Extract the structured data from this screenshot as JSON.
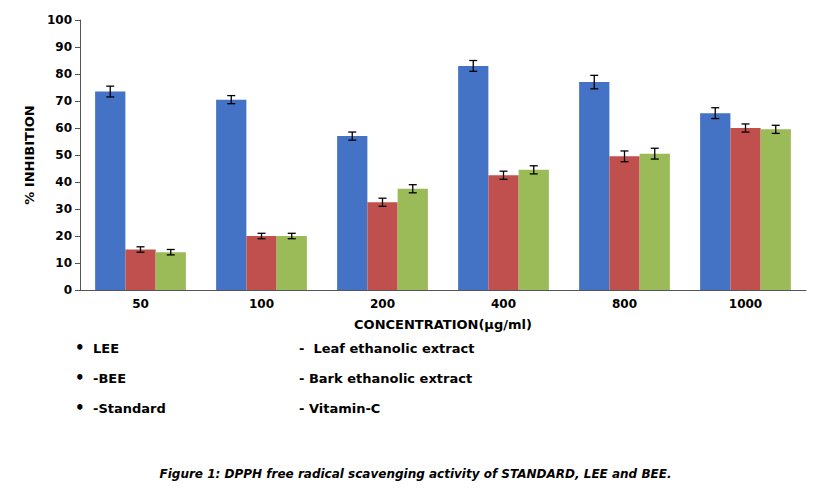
{
  "chart_data": {
    "type": "bar",
    "xlabel": "CONCENTRATION(μg/ml)",
    "ylabel": "% INHIBITION",
    "categories": [
      "50",
      "100",
      "200",
      "400",
      "800",
      "1000"
    ],
    "series": [
      {
        "color": "#4472C4",
        "values": [
          73.5,
          70.5,
          57.0,
          83.0,
          77.0,
          65.5
        ],
        "errors": [
          2.0,
          1.5,
          1.5,
          2.0,
          2.5,
          2.0
        ]
      },
      {
        "color": "#C0504D",
        "values": [
          15.0,
          20.0,
          32.5,
          42.5,
          49.5,
          60.0
        ],
        "errors": [
          1.0,
          1.0,
          1.5,
          1.5,
          2.0,
          1.5
        ]
      },
      {
        "color": "#9BBB59",
        "values": [
          14.0,
          20.0,
          37.5,
          44.5,
          50.5,
          59.5
        ],
        "errors": [
          1.0,
          1.0,
          1.5,
          1.5,
          2.0,
          1.5
        ]
      }
    ],
    "ylim": [
      0,
      100
    ],
    "yticks": [
      0,
      10,
      20,
      30,
      40,
      50,
      60,
      70,
      80,
      90,
      100
    ],
    "grid": false,
    "annotations": [
      [
        "•",
        "LEE",
        "-  Leaf ethanolic extract"
      ],
      [
        "•",
        "-BEE",
        "- Bark ethanolic extract"
      ],
      [
        "•",
        "-Standard",
        "- Vitamin-C"
      ],
      [
        "Figure 1: DPPH free radical scavenging activity of STANDARD, LEE and BEE."
      ]
    ]
  }
}
